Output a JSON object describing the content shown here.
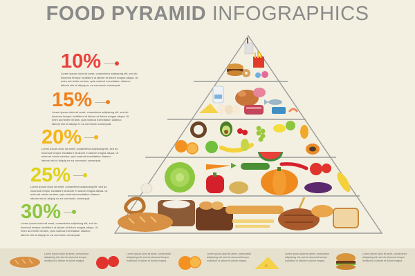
{
  "title": {
    "bold": "FOOD PYRAMID",
    "light": "INFOGRAPHICS"
  },
  "levels": [
    {
      "percent": "10%",
      "color": "#e9413b",
      "text": "Lorem ipsum dolor sit amet, consectetur adipiscing elit, sed do eiusmod tempor incididunt ut labore et dolore magna aliqua. Ut enim ad minim veniam, quis nostrud exercitation ullamco laboris nisi ut aliquip ex ea commodo consequat."
    },
    {
      "percent": "15%",
      "color": "#f0801e",
      "text": "Lorem ipsum dolor sit amet, consectetur adipiscing elit, sed do eiusmod tempor incididunt ut labore et dolore magna aliqua. Ut enim ad minim veniam, quis nostrud exercitation ullamco laboris nisi ut aliquip ex ea commodo consequat."
    },
    {
      "percent": "20%",
      "color": "#f4b41a",
      "text": "Lorem ipsum dolor sit amet, consectetur adipiscing elit, sed do eiusmod tempor incididunt ut labore et dolore magna aliqua. Ut enim ad minim veniam, quis nostrud exercitation ullamco laboris nisi ut aliquip ex ea commodo consequat."
    },
    {
      "percent": "25%",
      "color": "#e0d21b",
      "text": "Lorem ipsum dolor sit amet, consectetur adipiscing elit, sed do eiusmod tempor incididunt ut labore et dolore magna aliqua. Ut enim ad minim veniam, quis nostrud exercitation ullamco laboris nisi ut aliquip ex ea commodo consequat."
    },
    {
      "percent": "30%",
      "color": "#8dc63f",
      "text": "Lorem ipsum dolor sit amet, consectetur adipiscing elit, sed do eiusmod tempor incididunt ut labore et dolore magna aliqua. Ut enim ad minim veniam, quis nostrud exercitation ullamco laboris nisi ut aliquip ex ea commodo consequat."
    }
  ],
  "footer_items": [
    {
      "icon": "bread-icon",
      "text": "Lorem ipsum dolor sit amet, consectetur adipiscing elit, sed do eiusmod tempor incididunt ut labore et dolore magna."
    },
    {
      "icon": "tomato-icon",
      "text": "Lorem ipsum dolor sit amet, consectetur adipiscing elit, sed do eiusmod tempor incididunt ut labore et dolore magna."
    },
    {
      "icon": "orange-icon",
      "text": "Lorem ipsum dolor sit amet, consectetur adipiscing elit, sed do eiusmod tempor incididunt ut labore et dolore magna."
    },
    {
      "icon": "cheese-icon",
      "text": "Lorem ipsum dolor sit amet, consectetur adipiscing elit, sed do eiusmod tempor incididunt ut labore et dolore magna."
    },
    {
      "icon": "burger-icon",
      "text": "Lorem ipsum dolor sit amet, consectetur adipiscing elit, sed do eiusmod tempor incididunt ut labore et dolore magna."
    }
  ]
}
